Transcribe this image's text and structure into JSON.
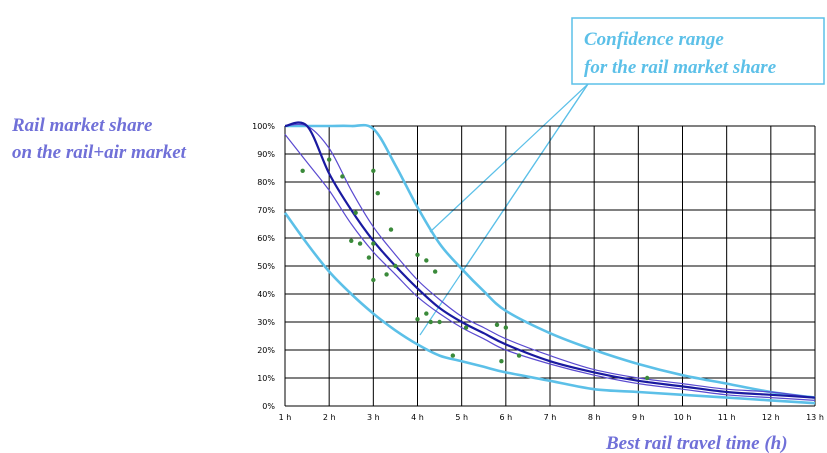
{
  "chart_data": {
    "type": "line",
    "ylabel": [
      "Rail market share",
      "on the rail+air market"
    ],
    "xlabel": "Best rail travel time (h)",
    "annotation": [
      "Confidence range",
      "for the rail market share"
    ],
    "xlim": [
      1,
      13
    ],
    "ylim": [
      0,
      100
    ],
    "grid": true,
    "x_ticks": [
      1,
      2,
      3,
      4,
      5,
      6,
      7,
      8,
      9,
      10,
      11,
      12,
      13
    ],
    "x_tick_labels": [
      "1 h",
      "2 h",
      "3 h",
      "4 h",
      "5 h",
      "6 h",
      "7 h",
      "8 h",
      "9 h",
      "10 h",
      "11 h",
      "12 h",
      "13 h"
    ],
    "y_ticks": [
      0,
      10,
      20,
      30,
      40,
      50,
      60,
      70,
      80,
      90,
      100
    ],
    "y_tick_labels": [
      "0%",
      "10%",
      "20%",
      "30%",
      "40%",
      "50%",
      "60%",
      "70%",
      "80%",
      "90%",
      "100%"
    ],
    "series": [
      {
        "role": "central-curve",
        "color": "#1a1aa0",
        "x": [
          1.0,
          1.5,
          2.0,
          2.5,
          3.0,
          3.5,
          4.0,
          4.5,
          5.0,
          5.5,
          6.0,
          7.0,
          8.0,
          9.0,
          10.0,
          11.0,
          12.0,
          13.0
        ],
        "y": [
          100,
          100,
          83,
          70,
          59,
          50,
          42,
          35,
          30,
          26,
          22,
          16,
          12,
          9,
          7,
          5,
          4,
          3
        ]
      },
      {
        "role": "inner-lower",
        "color": "#5a4ad0",
        "x": [
          1.0,
          1.5,
          2.0,
          2.5,
          3.0,
          3.5,
          4.0,
          4.5,
          5.0,
          5.5,
          6.0,
          7.0,
          8.0,
          9.0,
          10.0,
          11.0,
          12.0,
          13.0
        ],
        "y": [
          97,
          87,
          77,
          65,
          55,
          47,
          39,
          33,
          28,
          24,
          20,
          15,
          11,
          8,
          6,
          4,
          3,
          2
        ]
      },
      {
        "role": "inner-upper",
        "color": "#5a4ad0",
        "x": [
          1.0,
          1.5,
          2.0,
          2.5,
          3.0,
          3.5,
          4.0,
          4.5,
          5.0,
          5.5,
          6.0,
          7.0,
          8.0,
          9.0,
          10.0,
          11.0,
          12.0,
          13.0
        ],
        "y": [
          100,
          100,
          92,
          77,
          64,
          54,
          45,
          38,
          32,
          28,
          24,
          18,
          13,
          10,
          8,
          6,
          5,
          3
        ]
      },
      {
        "role": "confidence-lower",
        "color": "#5cc0e8",
        "x": [
          1.0,
          1.5,
          2.0,
          2.5,
          3.0,
          3.5,
          4.0,
          4.5,
          5.0,
          5.5,
          6.0,
          7.0,
          8.0,
          9.0,
          10.0,
          11.0,
          12.0,
          13.0
        ],
        "y": [
          69,
          58,
          48,
          40,
          33,
          27,
          22,
          18,
          16,
          14,
          12,
          9,
          6,
          5,
          4,
          3,
          2,
          1
        ]
      },
      {
        "role": "confidence-upper",
        "color": "#5cc0e8",
        "x": [
          1.0,
          1.5,
          2.0,
          2.5,
          3.0,
          3.5,
          4.0,
          4.5,
          5.0,
          5.5,
          6.0,
          7.0,
          8.0,
          9.0,
          10.0,
          11.0,
          12.0,
          13.0
        ],
        "y": [
          100,
          100,
          100,
          100,
          99,
          86,
          71,
          58,
          49,
          41,
          34,
          26,
          20,
          15,
          11,
          8,
          5,
          3
        ]
      }
    ],
    "scatter": {
      "color": "#3a8a3a",
      "points": [
        [
          1.4,
          84
        ],
        [
          2.0,
          88
        ],
        [
          2.3,
          82
        ],
        [
          2.6,
          69
        ],
        [
          2.5,
          59
        ],
        [
          2.7,
          58
        ],
        [
          3.0,
          84
        ],
        [
          3.1,
          76
        ],
        [
          2.9,
          53
        ],
        [
          3.0,
          45
        ],
        [
          3.3,
          47
        ],
        [
          3.4,
          63
        ],
        [
          3.0,
          58
        ],
        [
          3.5,
          50
        ],
        [
          4.0,
          54
        ],
        [
          4.2,
          52
        ],
        [
          4.0,
          31
        ],
        [
          4.2,
          33
        ],
        [
          4.3,
          30
        ],
        [
          4.4,
          48
        ],
        [
          4.5,
          30
        ],
        [
          4.8,
          18
        ],
        [
          5.1,
          28
        ],
        [
          5.8,
          29
        ],
        [
          6.0,
          28
        ],
        [
          5.9,
          16
        ],
        [
          6.3,
          18
        ],
        [
          9.2,
          10
        ]
      ]
    }
  }
}
